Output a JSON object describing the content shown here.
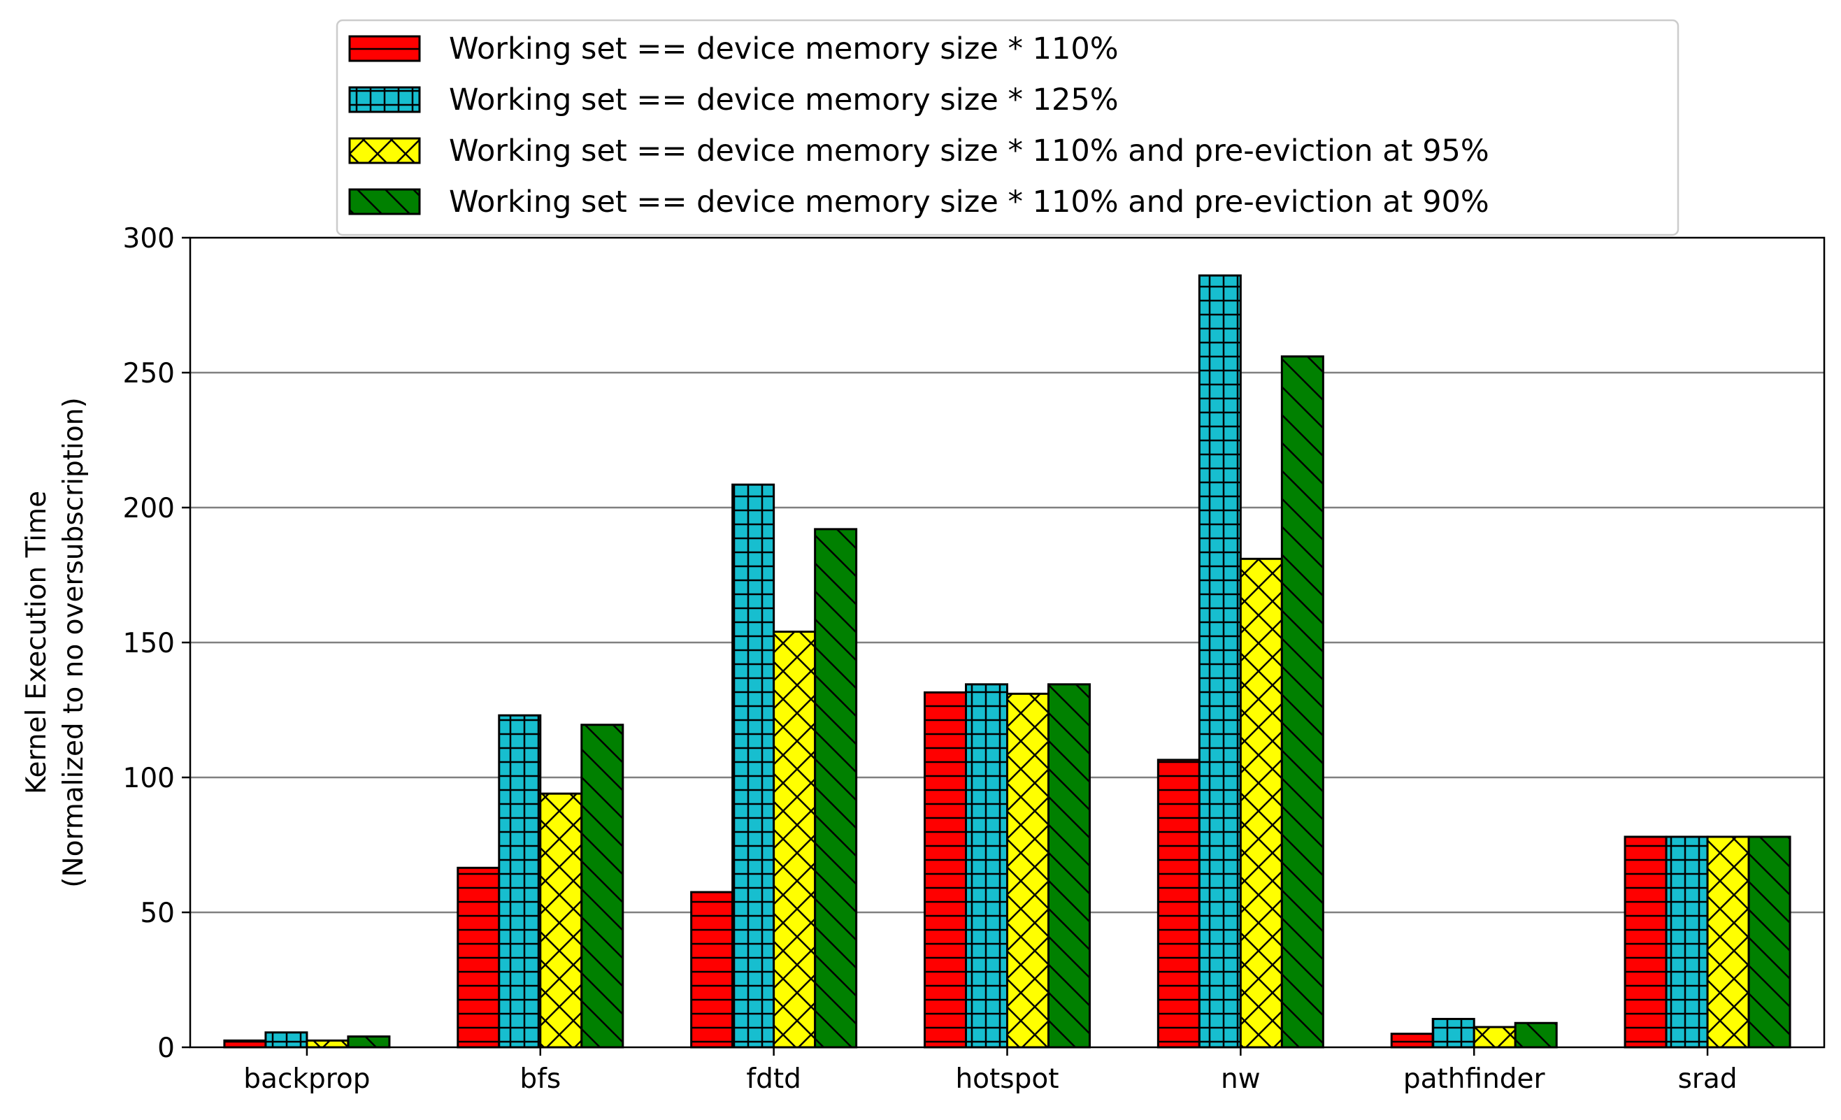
{
  "chart_data": {
    "type": "bar",
    "categories": [
      "backprop",
      "bfs",
      "fdtd",
      "hotspot",
      "nw",
      "pathfinder",
      "srad"
    ],
    "series": [
      {
        "name": "Working set == device memory size * 110%",
        "color": "#ff0000",
        "hatch": "horizontal",
        "values": [
          2.5,
          66.5,
          57.5,
          131.5,
          106.5,
          5,
          78
        ]
      },
      {
        "name": "Working set == device memory size * 125%",
        "color": "#17becf",
        "hatch": "grid",
        "values": [
          5.5,
          123,
          208.5,
          134.5,
          286,
          10.5,
          78
        ]
      },
      {
        "name": "Working set == device memory size * 110% and pre-eviction at 95%",
        "color": "#ffff00",
        "hatch": "cross-diagonal",
        "values": [
          2.5,
          94,
          154,
          131,
          181,
          7.5,
          78
        ]
      },
      {
        "name": "Working set == device memory size * 110% and pre-eviction at 90%",
        "color": "#008000",
        "hatch": "back-diagonal",
        "values": [
          4,
          119.5,
          192,
          134.5,
          256,
          9,
          78
        ]
      }
    ],
    "yticks": [
      "0",
      "50",
      "100",
      "150",
      "200",
      "250",
      "300"
    ],
    "ylim": [
      0,
      300
    ],
    "ylabel": [
      "Kernel Execution Time",
      "(Normalized to no oversubscription)"
    ],
    "xlabel": "",
    "grid": "horizontal",
    "legend_position": "top-center"
  }
}
